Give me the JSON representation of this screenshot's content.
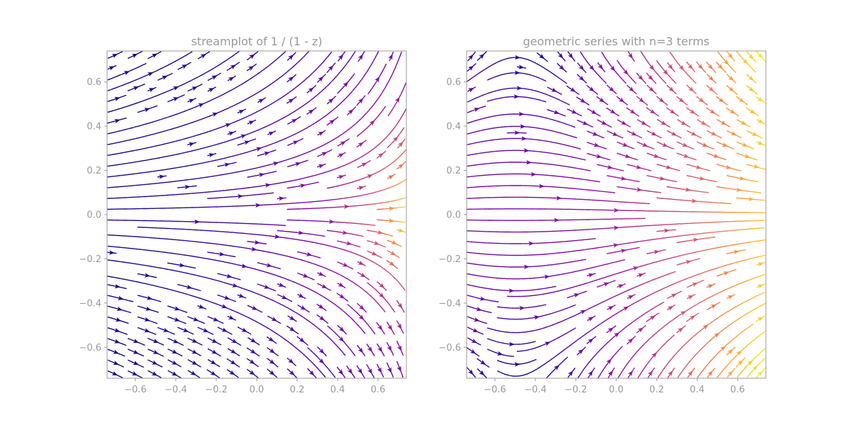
{
  "chart_data": [
    {
      "type": "streamplot",
      "title": "streamplot of 1 / (1 - z)",
      "field": "conj(1 / (1 - z))",
      "xlim": [
        -0.74,
        0.74
      ],
      "ylim": [
        -0.74,
        0.74
      ],
      "xticks": [
        -0.6,
        -0.4,
        -0.2,
        0.0,
        0.2,
        0.4,
        0.6
      ],
      "yticks": [
        -0.6,
        -0.4,
        -0.2,
        0.0,
        0.2,
        0.4,
        0.6
      ],
      "xtick_labels": [
        "−0.6",
        "−0.4",
        "−0.2",
        "0.0",
        "0.2",
        "0.4",
        "0.6"
      ],
      "ytick_labels": [
        "−0.6",
        "−0.4",
        "−0.2",
        "0.0",
        "0.2",
        "0.4",
        "0.6"
      ],
      "colormap": "plasma",
      "color_by": "speed"
    },
    {
      "type": "streamplot",
      "title": "geometric series with n=3 terms",
      "field": "conj(1 + z + z^2)",
      "xlim": [
        -0.74,
        0.74
      ],
      "ylim": [
        -0.74,
        0.74
      ],
      "xticks": [
        -0.6,
        -0.4,
        -0.2,
        0.0,
        0.2,
        0.4,
        0.6
      ],
      "yticks": [
        -0.6,
        -0.4,
        -0.2,
        0.0,
        0.2,
        0.4,
        0.6
      ],
      "xtick_labels": [
        "−0.6",
        "−0.4",
        "−0.2",
        "0.0",
        "0.2",
        "0.4",
        "0.6"
      ],
      "ytick_labels": [
        "−0.6",
        "−0.4",
        "−0.2",
        "0.0",
        "0.2",
        "0.4",
        "0.6"
      ],
      "colormap": "plasma",
      "color_by": "speed"
    }
  ],
  "colors": {
    "text": "#999999",
    "frame": "#999999",
    "plasma": [
      "#0d0887",
      "#5302a3",
      "#8b0aa5",
      "#b83289",
      "#db5c68",
      "#f48849",
      "#febd2a",
      "#f0f921"
    ]
  }
}
